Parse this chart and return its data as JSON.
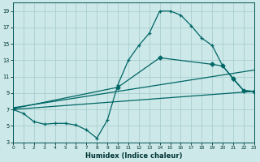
{
  "xlabel": "Humidex (Indice chaleur)",
  "bg_color": "#cce8e8",
  "grid_color": "#aacece",
  "line_color": "#006666",
  "xlim": [
    0,
    23
  ],
  "ylim": [
    3,
    20
  ],
  "yticks": [
    3,
    5,
    7,
    9,
    11,
    13,
    15,
    17,
    19
  ],
  "xticks": [
    0,
    1,
    2,
    3,
    4,
    5,
    6,
    7,
    8,
    9,
    10,
    11,
    12,
    13,
    14,
    15,
    16,
    17,
    18,
    19,
    20,
    21,
    22,
    23
  ],
  "line1_x": [
    0,
    1,
    2,
    3,
    4,
    5,
    6,
    7,
    8,
    9,
    10,
    11,
    12,
    13,
    14,
    15,
    16,
    17,
    18,
    19,
    20,
    21,
    22,
    23
  ],
  "line1_y": [
    7.0,
    6.5,
    5.5,
    5.2,
    5.3,
    5.3,
    5.1,
    4.5,
    3.5,
    5.7,
    10.0,
    13.0,
    14.8,
    16.3,
    19.0,
    19.0,
    18.5,
    17.2,
    15.7,
    14.8,
    12.3,
    10.7,
    9.3,
    9.2
  ],
  "line2_x": [
    0,
    23
  ],
  "line2_y": [
    7.0,
    9.2
  ],
  "line3_x": [
    0,
    23
  ],
  "line3_y": [
    7.2,
    11.8
  ],
  "line4_x": [
    0,
    10,
    14,
    19,
    20,
    21,
    22,
    23
  ],
  "line4_y": [
    7.1,
    9.7,
    13.3,
    12.5,
    12.3,
    10.8,
    9.3,
    9.2
  ]
}
